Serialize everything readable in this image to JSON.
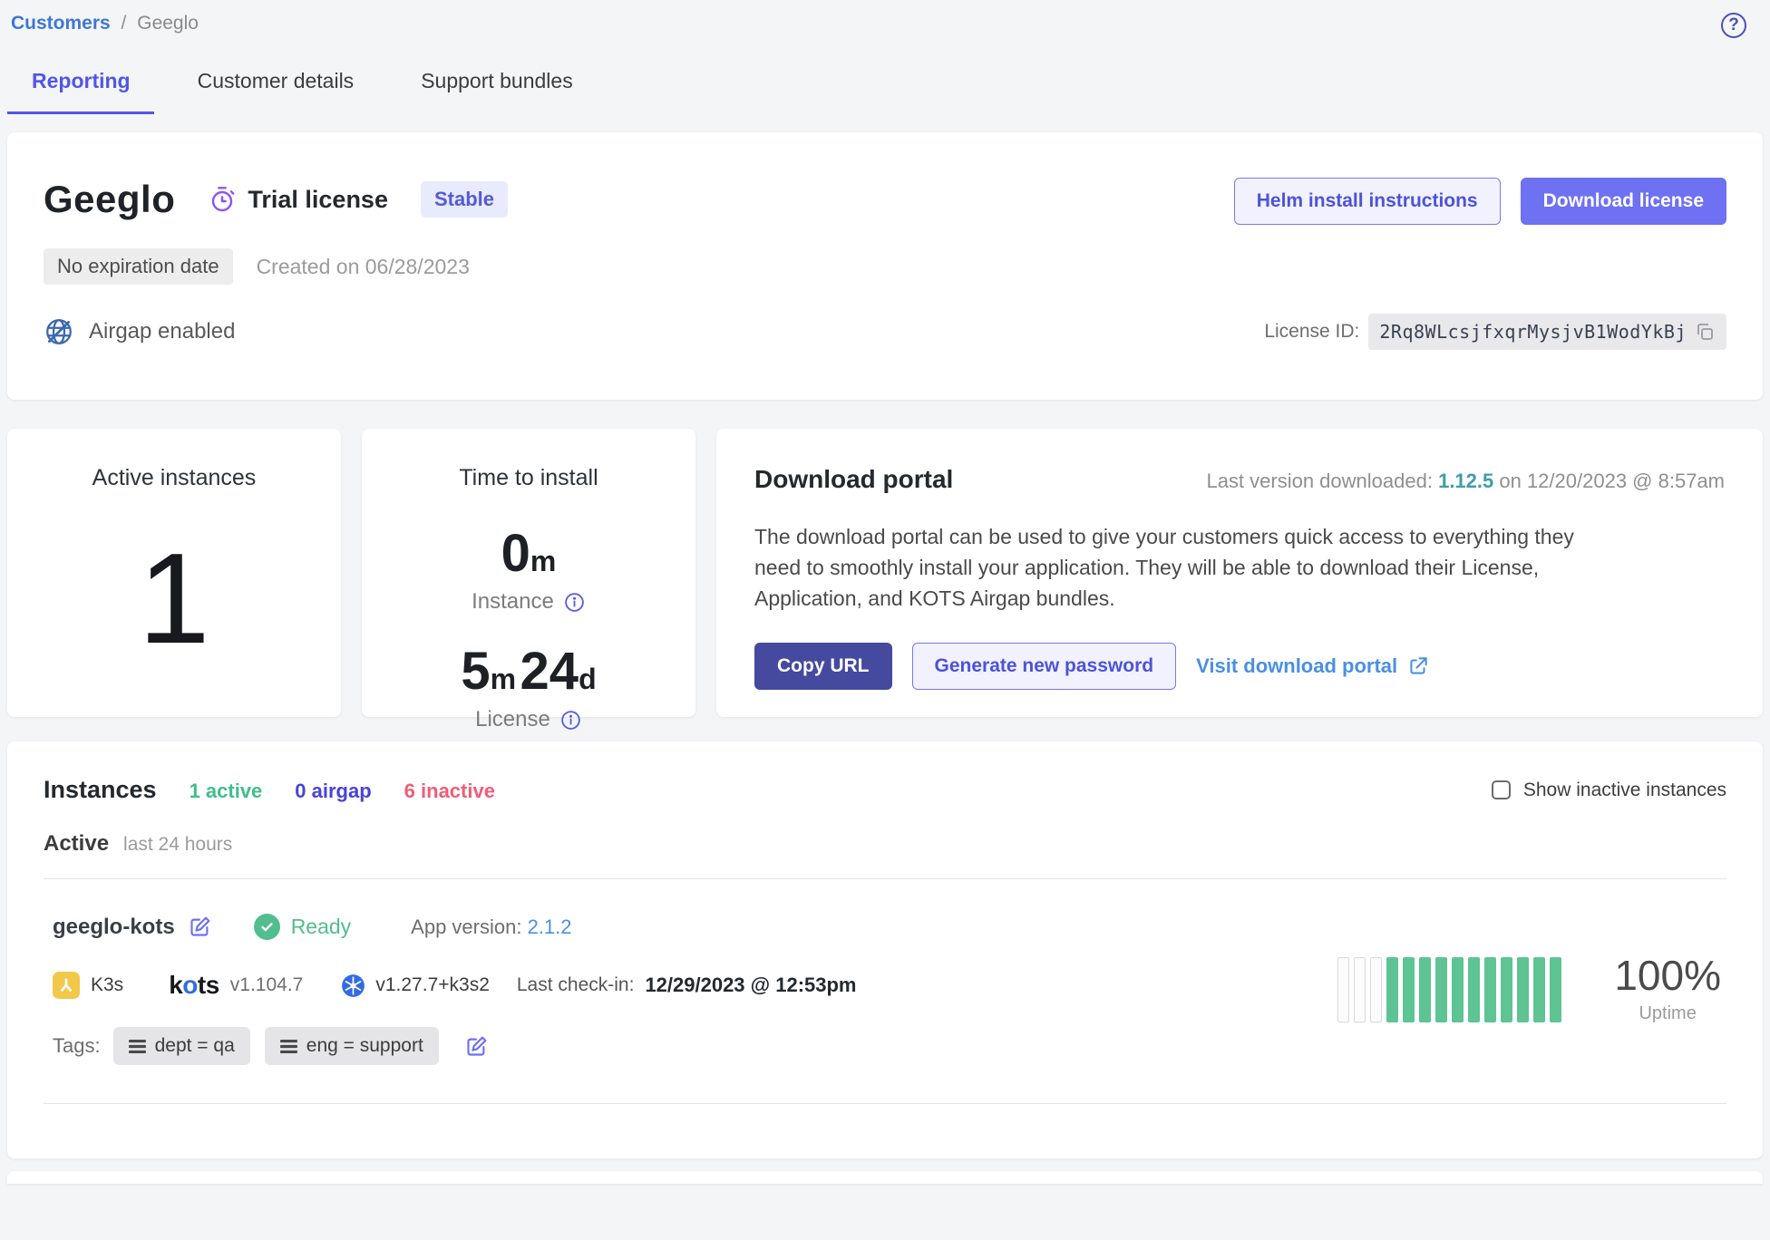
{
  "breadcrumb": {
    "root": "Customers",
    "separator": "/",
    "current": "Geeglo"
  },
  "help": {
    "glyph": "?"
  },
  "tabs": [
    {
      "label": "Reporting"
    },
    {
      "label": "Customer details"
    },
    {
      "label": "Support bundles"
    }
  ],
  "license_card": {
    "app_name": "Geeglo",
    "license_type": "Trial license",
    "channel_badge": "Stable",
    "expiration_badge": "No expiration date",
    "created_text": "Created on 06/28/2023",
    "airgap_label": "Airgap enabled",
    "helm_button": "Helm install instructions",
    "download_button": "Download license",
    "license_id_label": "License ID:",
    "license_id": "2Rq8WLcsjfxqrMysjvB1WodYkBj"
  },
  "active_instances_card": {
    "title": "Active instances",
    "count": "1"
  },
  "time_to_install_card": {
    "title": "Time to install",
    "instance_value": "0",
    "instance_unit": "m",
    "instance_label": "Instance",
    "license_value1": "5",
    "license_unit1": "m",
    "license_value2": "24",
    "license_unit2": "d",
    "license_label": "License"
  },
  "download_portal_card": {
    "title": "Download portal",
    "last_version_prefix": "Last version downloaded: ",
    "last_version": "1.12.5",
    "last_version_suffix": " on 12/20/2023 @ 8:57am",
    "description": "The download portal can be used to give your customers quick access to everything they need to smoothly install your application. They will be able to download their License, Application, and KOTS Airgap bundles.",
    "copy_url_button": "Copy URL",
    "generate_password_button": "Generate new password",
    "visit_portal_link": "Visit download portal"
  },
  "instances": {
    "title": "Instances",
    "active_count": "1 active",
    "airgap_count": "0 airgap",
    "inactive_count": "6 inactive",
    "show_inactive_label": "Show inactive instances",
    "section_label": "Active",
    "section_sublabel": "last 24 hours",
    "row": {
      "name": "geeglo-kots",
      "status": "Ready",
      "app_version_label": "App version: ",
      "app_version": "2.1.2",
      "distribution": "K3s",
      "kots_logo_parts": [
        "k",
        "o",
        "ts"
      ],
      "kots_version": "v1.104.7",
      "k8s_version": "v1.27.7+k3s2",
      "last_checkin_label": "Last check-in:",
      "last_checkin": "12/29/2023 @ 12:53pm",
      "tags_label": "Tags:",
      "tags": [
        {
          "label": "dept = qa"
        },
        {
          "label": "eng = support"
        }
      ],
      "uptime": {
        "percent": "100%",
        "label": "Uptime",
        "bars": [
          0,
          0,
          0,
          1,
          1,
          1,
          1,
          1,
          1,
          1,
          1,
          1,
          1,
          1
        ]
      }
    }
  },
  "colors": {
    "accent_indigo": "#6d71f2",
    "dark_indigo": "#454a9f",
    "active_tab": "#5056e8",
    "breadcrumb_blue": "#3d77d8",
    "link_blue": "#4a90e2",
    "teal_version": "#3f9daa",
    "green": "#52bd8e",
    "pink": "#ef5d77",
    "purple_icon": "#8b55f0",
    "k3s_yellow": "#f2c84b",
    "k8s_blue": "#326ce5"
  }
}
